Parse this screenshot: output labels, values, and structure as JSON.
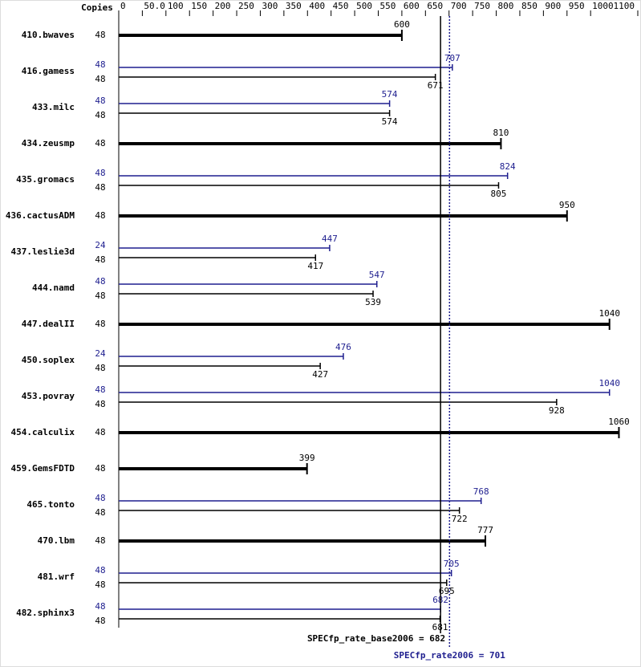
{
  "chart_data": {
    "type": "bar",
    "copies_header": "Copies",
    "categories": [
      "410.bwaves",
      "416.gamess",
      "433.milc",
      "434.zeusmp",
      "435.gromacs",
      "436.cactusADM",
      "437.leslie3d",
      "444.namd",
      "447.dealII",
      "450.soplex",
      "453.povray",
      "454.calculix",
      "459.GemsFDTD",
      "465.tonto",
      "470.lbm",
      "481.wrf",
      "482.sphinx3"
    ],
    "series": [
      {
        "color": "#000000",
        "copies": [
          "48",
          "48",
          "48",
          "48",
          "48",
          "48",
          "48",
          "48",
          "48",
          "48",
          "48",
          "48",
          "48",
          "48",
          "48",
          "48",
          "48"
        ],
        "values": [
          600,
          671,
          574,
          810,
          805,
          950,
          417,
          539,
          1040,
          427,
          928,
          1060,
          399,
          722,
          777,
          695,
          681
        ]
      },
      {
        "color": "#1f1f8f",
        "copies": [
          null,
          "48",
          "48",
          null,
          "48",
          null,
          "24",
          "48",
          null,
          "24",
          "48",
          null,
          null,
          "48",
          null,
          "48",
          "48"
        ],
        "values": [
          null,
          707,
          574,
          null,
          824,
          null,
          447,
          547,
          null,
          476,
          1040,
          null,
          null,
          768,
          null,
          705,
          682
        ]
      }
    ],
    "xlim": [
      0,
      1100
    ],
    "xticks": [
      0,
      {
        "value": 50,
        "label": "50.0"
      },
      100,
      150,
      200,
      250,
      300,
      350,
      400,
      450,
      500,
      550,
      600,
      650,
      700,
      750,
      800,
      850,
      900,
      950,
      1000,
      1100
    ],
    "reference_lines": [
      {
        "label": "SPECfp_rate_base2006 = 682",
        "value": 682,
        "color": "#000000"
      },
      {
        "label": "SPECfp_rate2006 = 701",
        "value": 701,
        "color": "#1f1f8f"
      }
    ]
  }
}
